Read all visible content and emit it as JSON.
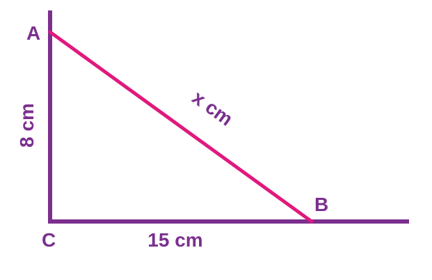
{
  "diagram": {
    "vertices": {
      "a": "A",
      "b": "B",
      "c": "C"
    },
    "sides": {
      "vertical": "8 cm",
      "horizontal": "15 cm",
      "hypotenuse": "x cm"
    },
    "colors": {
      "axes": "#7b2f8e",
      "hypotenuse": "#e0197d",
      "text": "#7b2f8e"
    }
  }
}
